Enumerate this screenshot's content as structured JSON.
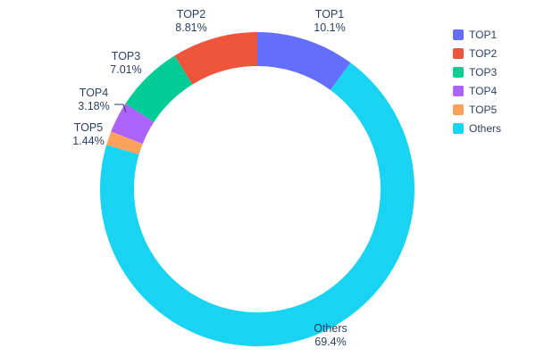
{
  "chart_data": {
    "type": "pie",
    "subtype": "donut",
    "title": "",
    "hole": 0.78,
    "label_color": "#2a3f5f",
    "legend_position": "top-right",
    "slices": [
      {
        "label": "TOP1",
        "value": 10.1,
        "pct_text": "10.1%",
        "color": "#636EFA"
      },
      {
        "label": "TOP2",
        "value": 8.81,
        "pct_text": "8.81%",
        "color": "#EF553B"
      },
      {
        "label": "TOP3",
        "value": 7.01,
        "pct_text": "7.01%",
        "color": "#00CC96"
      },
      {
        "label": "TOP4",
        "value": 3.18,
        "pct_text": "3.18%",
        "color": "#AB63FA"
      },
      {
        "label": "TOP5",
        "value": 1.44,
        "pct_text": "1.44%",
        "color": "#FFA15A"
      },
      {
        "label": "Others",
        "value": 69.4,
        "pct_text": "69.4%",
        "color": "#19D3F3"
      }
    ]
  }
}
